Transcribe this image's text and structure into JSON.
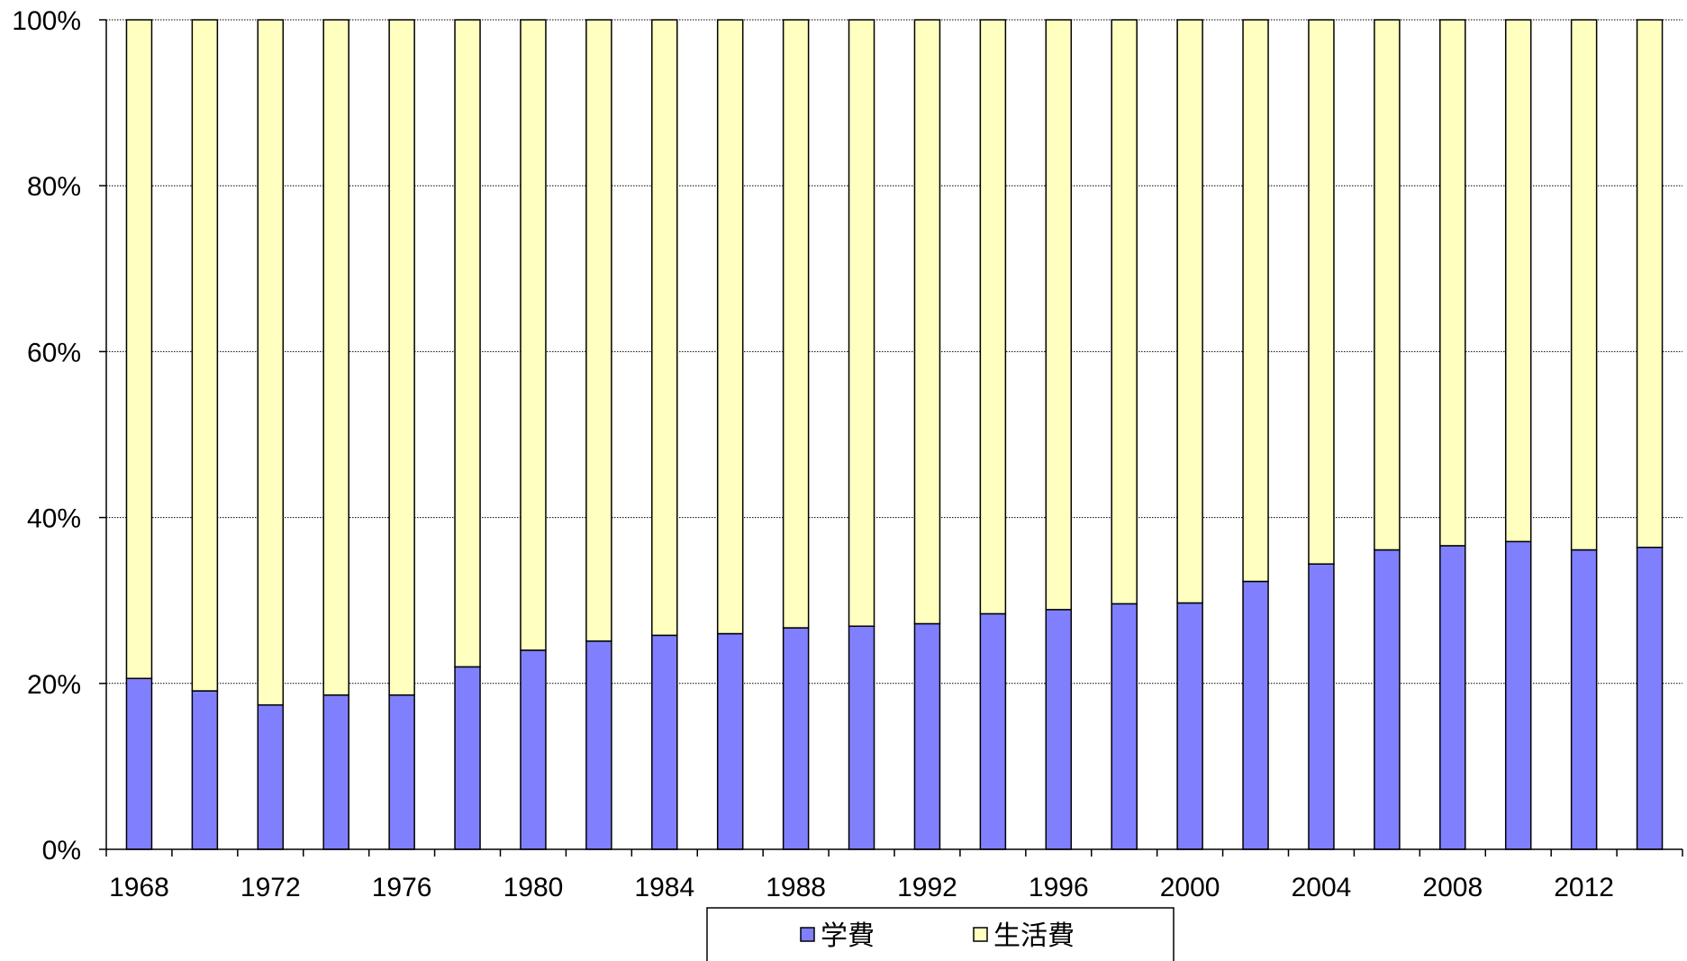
{
  "chart_data": {
    "type": "bar",
    "stacked": "percent",
    "categories": [
      "1968",
      "1970",
      "1972",
      "1974",
      "1976",
      "1978",
      "1980",
      "1982",
      "1984",
      "1986",
      "1988",
      "1990",
      "1992",
      "1994",
      "1996",
      "1998",
      "2000",
      "2002",
      "2004",
      "2006",
      "2008",
      "2010",
      "2012",
      "2014"
    ],
    "x_tick_labels": [
      "1968",
      "1972",
      "1976",
      "1980",
      "1984",
      "1988",
      "1992",
      "1996",
      "2000",
      "2004",
      "2008",
      "2012"
    ],
    "y_tick_labels": [
      "0%",
      "20%",
      "40%",
      "60%",
      "80%",
      "100%"
    ],
    "ylim": [
      0,
      100
    ],
    "grid": "horizontal-dotted",
    "legend_position": "bottom-center",
    "series": [
      {
        "name": "学費",
        "color": "#8080ff",
        "values": [
          20.6,
          19.1,
          17.4,
          18.6,
          18.6,
          22.0,
          24.0,
          25.1,
          25.8,
          26.0,
          26.7,
          26.9,
          27.2,
          28.4,
          28.9,
          29.6,
          29.7,
          32.3,
          34.4,
          36.1,
          36.6,
          37.1,
          36.1,
          36.4
        ]
      },
      {
        "name": "生活費",
        "color": "#ffffc0",
        "values": [
          79.4,
          80.9,
          82.6,
          81.4,
          81.4,
          78.0,
          76.0,
          74.9,
          74.2,
          74.0,
          73.3,
          73.1,
          72.8,
          71.6,
          71.1,
          70.4,
          70.3,
          67.7,
          65.6,
          63.9,
          63.4,
          62.9,
          63.9,
          63.6
        ]
      }
    ],
    "title": "",
    "xlabel": "",
    "ylabel": ""
  }
}
